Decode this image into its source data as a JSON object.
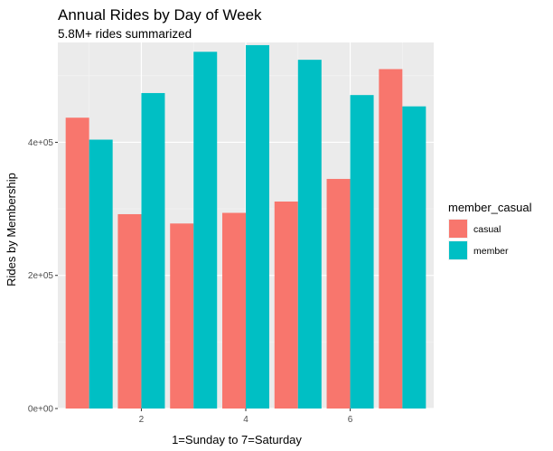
{
  "chart_data": {
    "type": "bar",
    "title": "Annual Rides by Day of Week",
    "subtitle": "5.8M+ rides summarized",
    "xlabel": "1=Sunday to 7=Saturday",
    "ylabel": "Rides by Membership",
    "categories": [
      1,
      2,
      3,
      4,
      5,
      6,
      7
    ],
    "x_ticks": [
      2,
      4,
      6
    ],
    "x_tick_labels": [
      "2",
      "4",
      "6"
    ],
    "xlim": [
      0.4,
      7.6
    ],
    "y_ticks": [
      0,
      200000,
      400000
    ],
    "y_tick_labels": [
      "0e+00",
      "2e+05",
      "4e+05"
    ],
    "ylim": [
      0,
      550000
    ],
    "grid": true,
    "legend": {
      "title": "member_casual",
      "placement": "right"
    },
    "series": [
      {
        "name": "casual",
        "color": "#F8766D",
        "values": [
          437000,
          292000,
          278000,
          294000,
          311000,
          345000,
          510000
        ]
      },
      {
        "name": "member",
        "color": "#00BFC4",
        "values": [
          404000,
          474000,
          536000,
          546000,
          524000,
          471000,
          454000
        ]
      }
    ]
  }
}
